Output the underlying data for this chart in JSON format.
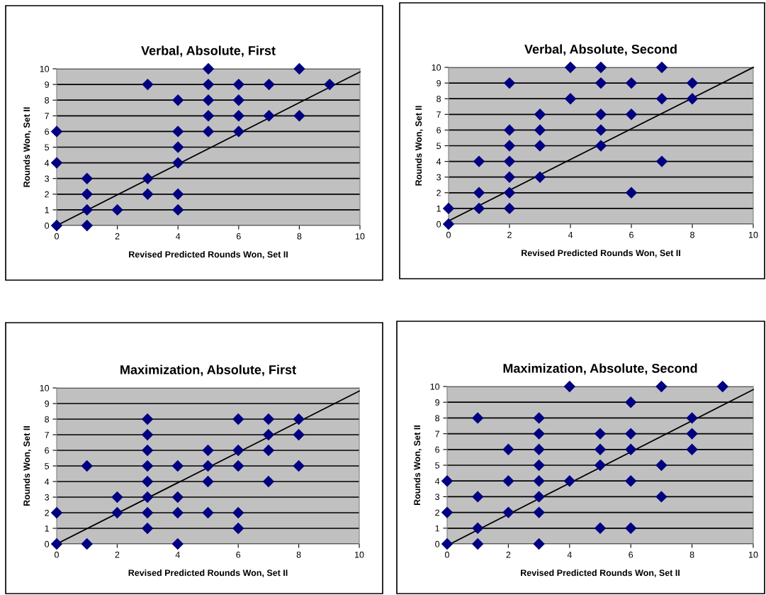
{
  "chart_data": [
    {
      "type": "scatter",
      "title": "Verbal, Absolute, First",
      "xlabel": "Revised Predicted Rounds Won, Set II",
      "ylabel": "Rounds Won, Set II",
      "xlim": [
        0,
        10
      ],
      "ylim": [
        0,
        10
      ],
      "xticks": [
        0,
        2,
        4,
        6,
        8,
        10
      ],
      "yticks": [
        0,
        1,
        2,
        3,
        4,
        5,
        6,
        7,
        8,
        9,
        10
      ],
      "grid": "y",
      "marker": "diamond",
      "series": [
        {
          "color": "#000080",
          "x": [
            0,
            0,
            0,
            1,
            1,
            1,
            1,
            2,
            3,
            3,
            3,
            4,
            4,
            4,
            4,
            4,
            4,
            5,
            5,
            5,
            5,
            5,
            6,
            6,
            6,
            6,
            7,
            7,
            8,
            8,
            9
          ],
          "values": [
            0,
            4,
            6,
            0,
            1,
            2,
            3,
            1,
            2,
            3,
            9,
            1,
            2,
            4,
            5,
            6,
            8,
            6,
            7,
            8,
            9,
            10,
            6,
            7,
            8,
            9,
            7,
            9,
            7,
            10,
            9
          ]
        },
        {
          "type": "line",
          "color": "#000000",
          "marker": "none",
          "x": [
            0,
            10
          ],
          "values": [
            0,
            9.8
          ]
        }
      ]
    },
    {
      "type": "scatter",
      "title": "Verbal, Absolute, Second",
      "xlabel": "Revised Predicted Rounds Won, Set II",
      "ylabel": "Rounds Won, Set II",
      "xlim": [
        0,
        10
      ],
      "ylim": [
        0,
        10
      ],
      "xticks": [
        0,
        2,
        4,
        6,
        8,
        10
      ],
      "yticks": [
        0,
        1,
        2,
        3,
        4,
        5,
        6,
        7,
        8,
        9,
        10
      ],
      "grid": "y",
      "marker": "diamond",
      "series": [
        {
          "color": "#000080",
          "x": [
            0,
            0,
            1,
            1,
            1,
            2,
            2,
            2,
            2,
            2,
            2,
            2,
            3,
            3,
            3,
            3,
            4,
            4,
            5,
            5,
            5,
            5,
            5,
            6,
            6,
            6,
            7,
            7,
            7,
            8,
            8
          ],
          "values": [
            0,
            1,
            1,
            2,
            4,
            1,
            2,
            3,
            4,
            5,
            6,
            9,
            3,
            5,
            6,
            7,
            8,
            10,
            5,
            6,
            7,
            9,
            10,
            2,
            7,
            9,
            4,
            8,
            10,
            8,
            9
          ]
        },
        {
          "type": "line",
          "color": "#000000",
          "marker": "none",
          "x": [
            0,
            10
          ],
          "values": [
            0.2,
            10
          ]
        }
      ]
    },
    {
      "type": "scatter",
      "title": "Maximization, Absolute, First",
      "xlabel": "Revised Predicted Rounds Won, Set II",
      "ylabel": "Rounds Won, Set II",
      "xlim": [
        0,
        10
      ],
      "ylim": [
        0,
        10
      ],
      "xticks": [
        0,
        2,
        4,
        6,
        8,
        10
      ],
      "yticks": [
        0,
        1,
        2,
        3,
        4,
        5,
        6,
        7,
        8,
        9,
        10
      ],
      "grid": "y",
      "marker": "diamond",
      "series": [
        {
          "color": "#000080",
          "x": [
            0,
            0,
            1,
            1,
            2,
            2,
            3,
            3,
            3,
            3,
            3,
            3,
            3,
            3,
            4,
            4,
            4,
            4,
            5,
            5,
            5,
            5,
            6,
            6,
            6,
            6,
            6,
            7,
            7,
            7,
            7,
            8,
            8,
            8
          ],
          "values": [
            0,
            2,
            0,
            5,
            2,
            3,
            1,
            2,
            3,
            4,
            5,
            6,
            7,
            8,
            0,
            2,
            3,
            5,
            2,
            4,
            5,
            6,
            1,
            2,
            5,
            6,
            8,
            4,
            6,
            7,
            8,
            5,
            7,
            8
          ]
        },
        {
          "type": "line",
          "color": "#000000",
          "marker": "none",
          "x": [
            0,
            10
          ],
          "values": [
            0,
            9.8
          ]
        }
      ]
    },
    {
      "type": "scatter",
      "title": "Maximization, Absolute, Second",
      "xlabel": "Revised Predicted Rounds Won, Set II",
      "ylabel": "Rounds Won, Set II",
      "xlim": [
        0,
        10
      ],
      "ylim": [
        0,
        10
      ],
      "xticks": [
        0,
        2,
        4,
        6,
        8,
        10
      ],
      "yticks": [
        0,
        1,
        2,
        3,
        4,
        5,
        6,
        7,
        8,
        9,
        10
      ],
      "grid": "y",
      "marker": "diamond",
      "series": [
        {
          "color": "#000080",
          "x": [
            0,
            0,
            0,
            1,
            1,
            1,
            1,
            2,
            2,
            2,
            3,
            3,
            3,
            3,
            3,
            3,
            3,
            3,
            4,
            4,
            5,
            5,
            5,
            5,
            6,
            6,
            6,
            6,
            6,
            7,
            7,
            7,
            8,
            8,
            8,
            9
          ],
          "values": [
            0,
            2,
            4,
            0,
            1,
            3,
            8,
            2,
            4,
            6,
            0,
            2,
            3,
            4,
            5,
            6,
            7,
            8,
            4,
            10,
            1,
            5,
            6,
            7,
            1,
            4,
            6,
            7,
            9,
            3,
            5,
            10,
            6,
            7,
            8,
            10
          ]
        },
        {
          "type": "line",
          "color": "#000000",
          "marker": "none",
          "x": [
            0.1,
            10
          ],
          "values": [
            0,
            9.8
          ]
        }
      ]
    }
  ]
}
